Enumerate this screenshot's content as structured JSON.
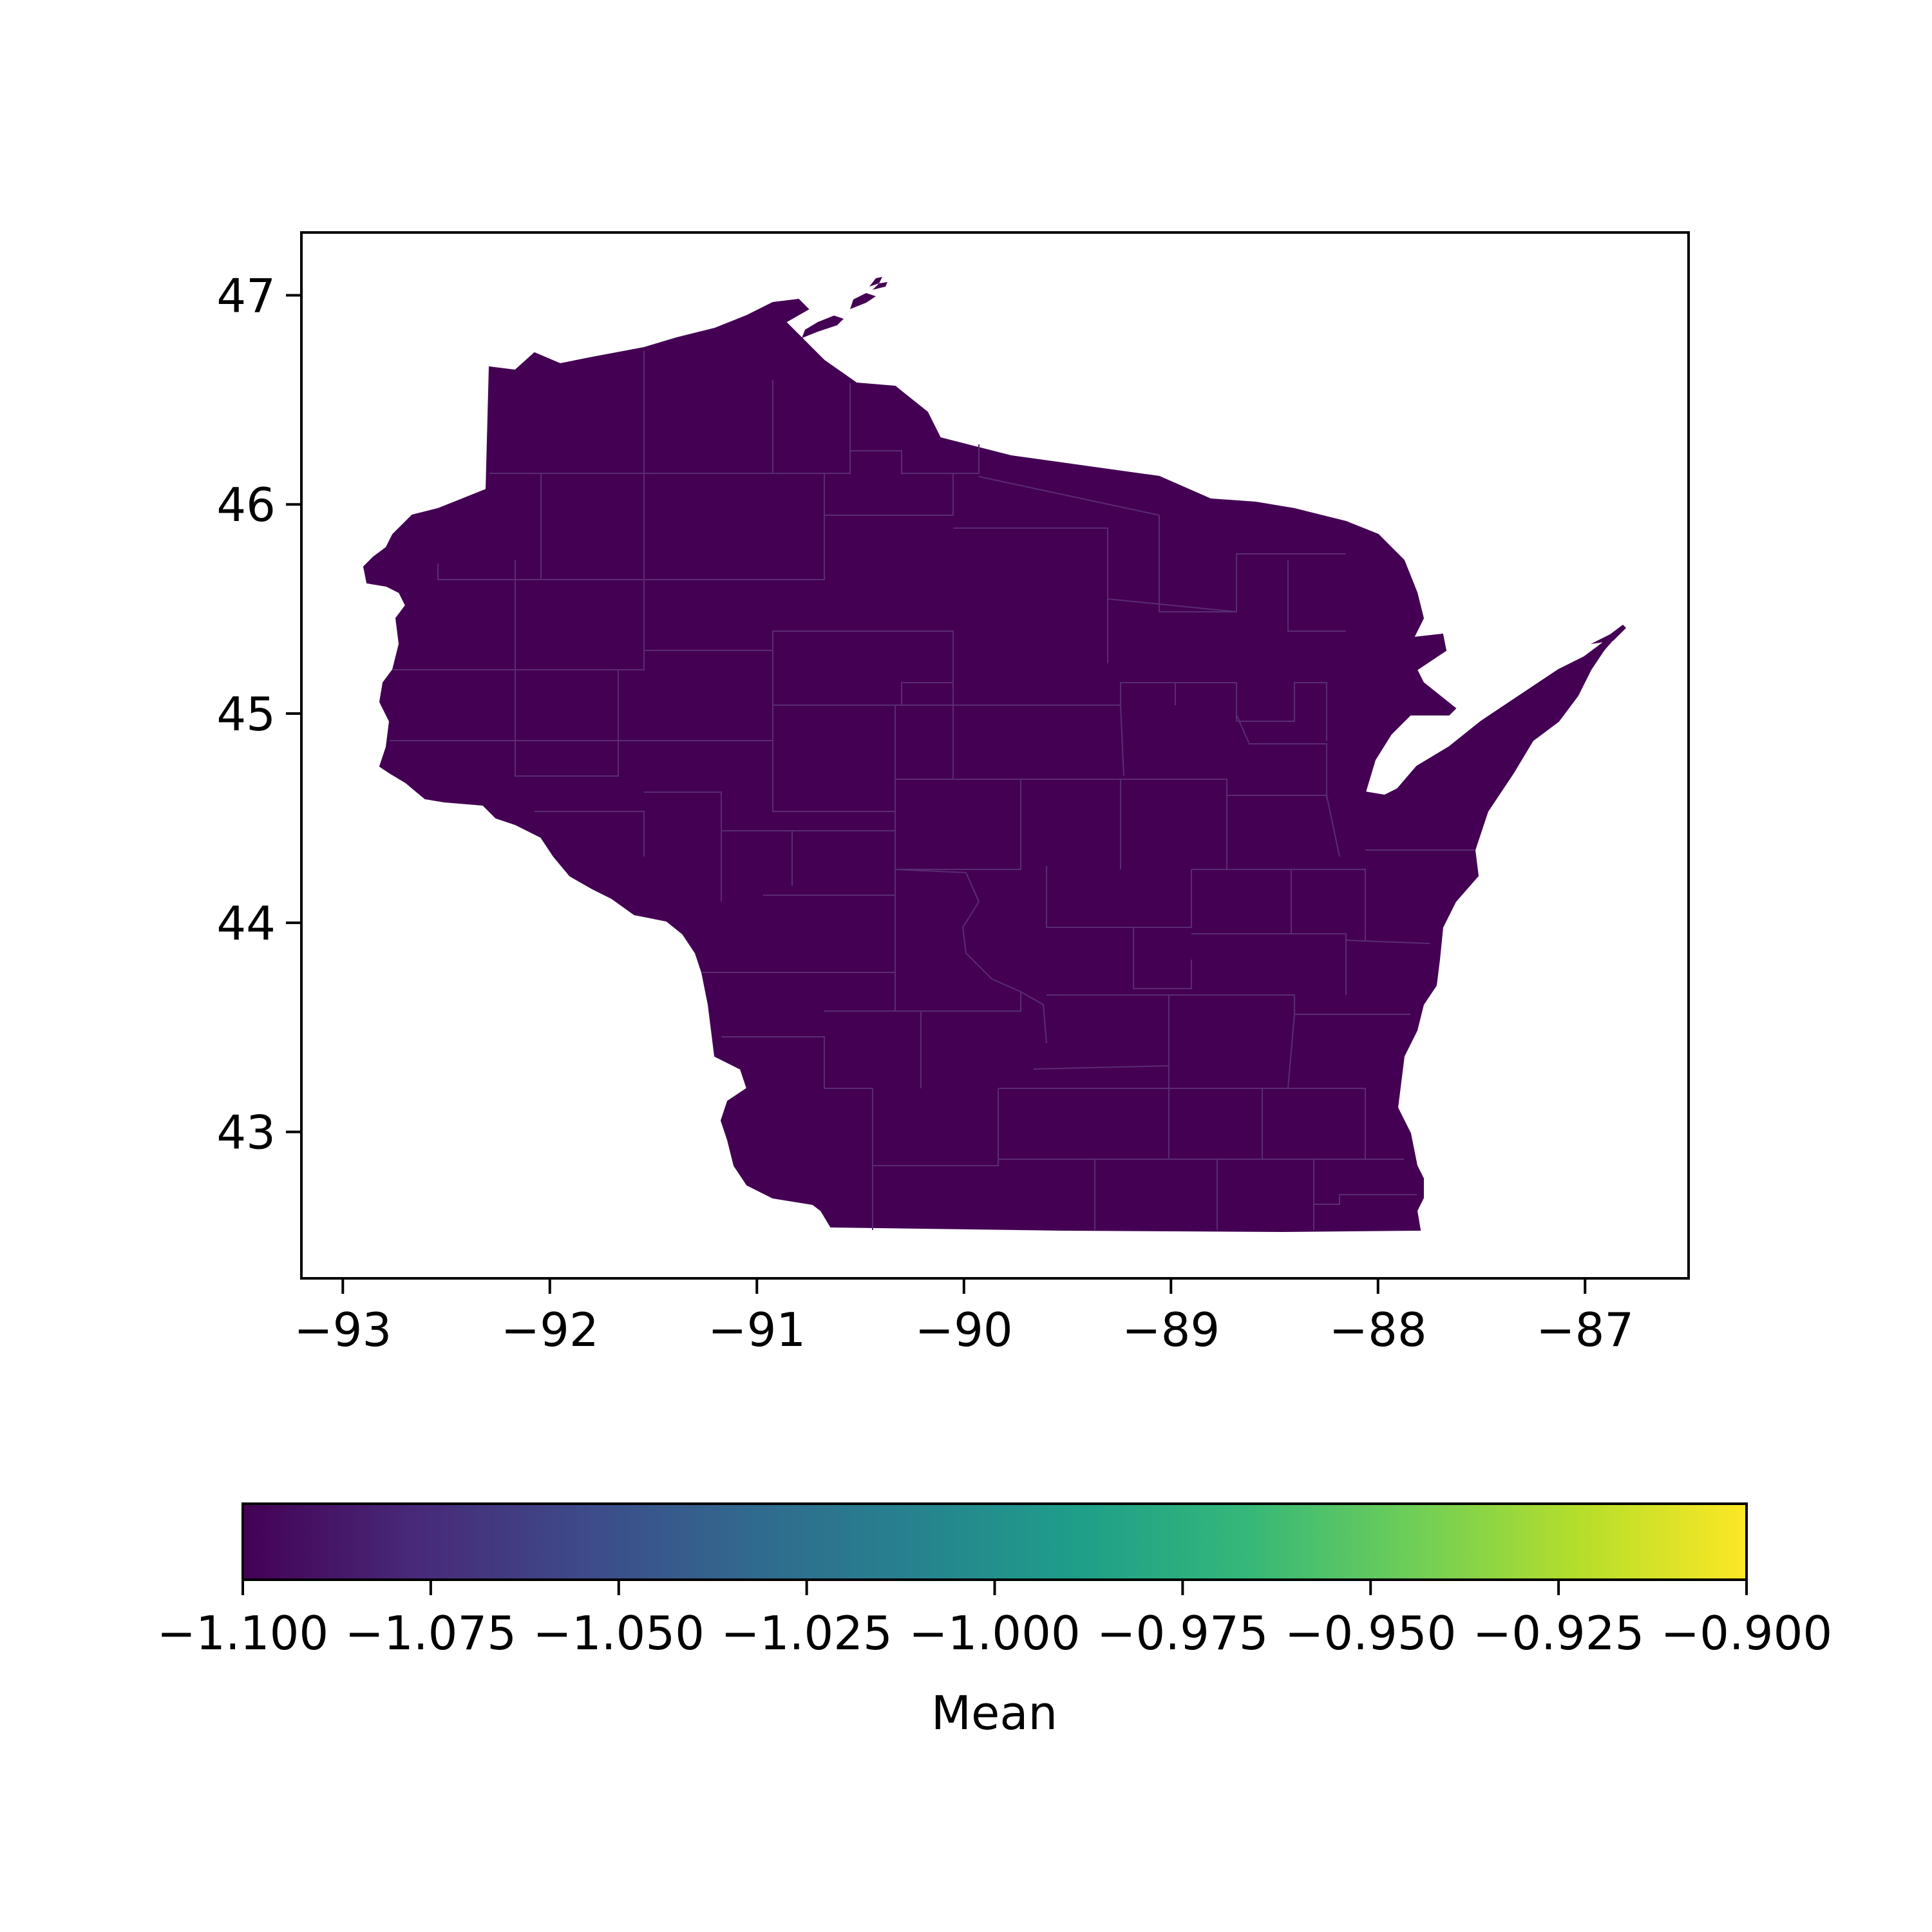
{
  "chart_data": {
    "type": "heatmap",
    "subtype": "choropleth map",
    "region": "Wisconsin counties",
    "x_ticks": [
      "−93",
      "−92",
      "−91",
      "−90",
      "−89",
      "−88",
      "−87"
    ],
    "y_ticks": [
      "43",
      "44",
      "45",
      "46",
      "47"
    ],
    "xlim": [
      -93.2,
      -86.5
    ],
    "ylim": [
      42.3,
      47.3
    ],
    "value_all_counties": -1.1,
    "fill_color": "#440154",
    "colorbar": {
      "label": "Mean",
      "colormap": "viridis",
      "range": [
        -1.1,
        -0.9
      ],
      "ticks": [
        "−1.100",
        "−1.075",
        "−1.050",
        "−1.025",
        "−1.000",
        "−0.975",
        "−0.950",
        "−0.925",
        "−0.900"
      ],
      "stops": [
        "#440154",
        "#482878",
        "#3e4989",
        "#31688e",
        "#26828e",
        "#1f9e89",
        "#35b779",
        "#6ece58",
        "#b5de2b",
        "#fde725"
      ]
    },
    "grid": false
  }
}
